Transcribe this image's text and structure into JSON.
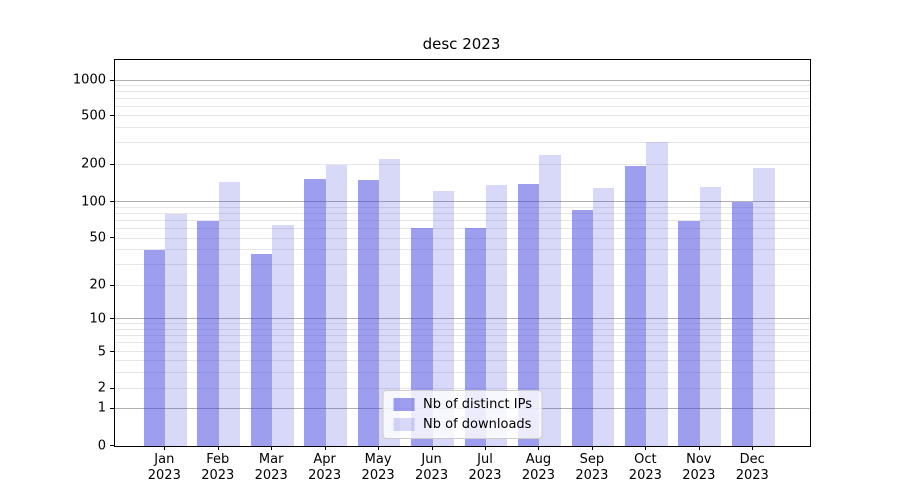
{
  "title": "desc 2023",
  "legend": {
    "items": [
      {
        "label": "Nb of distinct IPs",
        "color": "rgba(62,62,224,0.5)"
      },
      {
        "label": "Nb of downloads",
        "color": "rgba(62,62,224,0.2)"
      }
    ]
  },
  "x_axis": {
    "months": [
      "Jan",
      "Feb",
      "Mar",
      "Apr",
      "May",
      "Jun",
      "Jul",
      "Aug",
      "Sep",
      "Oct",
      "Nov",
      "Dec"
    ],
    "year": "2023"
  },
  "y_axis": {
    "tick_labels": [
      "0",
      "1",
      "2",
      "5",
      "10",
      "20",
      "50",
      "100",
      "200",
      "500",
      "1000"
    ]
  },
  "chart_data": {
    "type": "bar",
    "title": "desc 2023",
    "categories": [
      "Jan 2023",
      "Feb 2023",
      "Mar 2023",
      "Apr 2023",
      "May 2023",
      "Jun 2023",
      "Jul 2023",
      "Aug 2023",
      "Sep 2023",
      "Oct 2023",
      "Nov 2023",
      "Dec 2023"
    ],
    "series": [
      {
        "name": "Nb of distinct IPs",
        "values": [
          40,
          70,
          37,
          153,
          150,
          61,
          61,
          140,
          86,
          198,
          70,
          100
        ],
        "color": "rgba(62,62,224,0.5)"
      },
      {
        "name": "Nb of downloads",
        "values": [
          80,
          145,
          65,
          200,
          225,
          123,
          138,
          242,
          130,
          310,
          133,
          190
        ],
        "color": "rgba(62,62,224,0.2)"
      }
    ],
    "xlabel": "",
    "ylabel": "",
    "yscale": "symlog",
    "y_ticks": [
      0,
      1,
      2,
      5,
      10,
      20,
      50,
      100,
      200,
      500,
      1000
    ],
    "ylim": [
      0,
      1150
    ],
    "grid": "both",
    "legend_position": "lower center"
  },
  "colors": {
    "bar_distinct_ips": "rgba(62,62,224,0.5)",
    "bar_downloads": "rgba(62,62,224,0.2)",
    "grid_major": "#b0b0b0",
    "grid_minor": "#e6e6e6",
    "spine": "#000000"
  }
}
